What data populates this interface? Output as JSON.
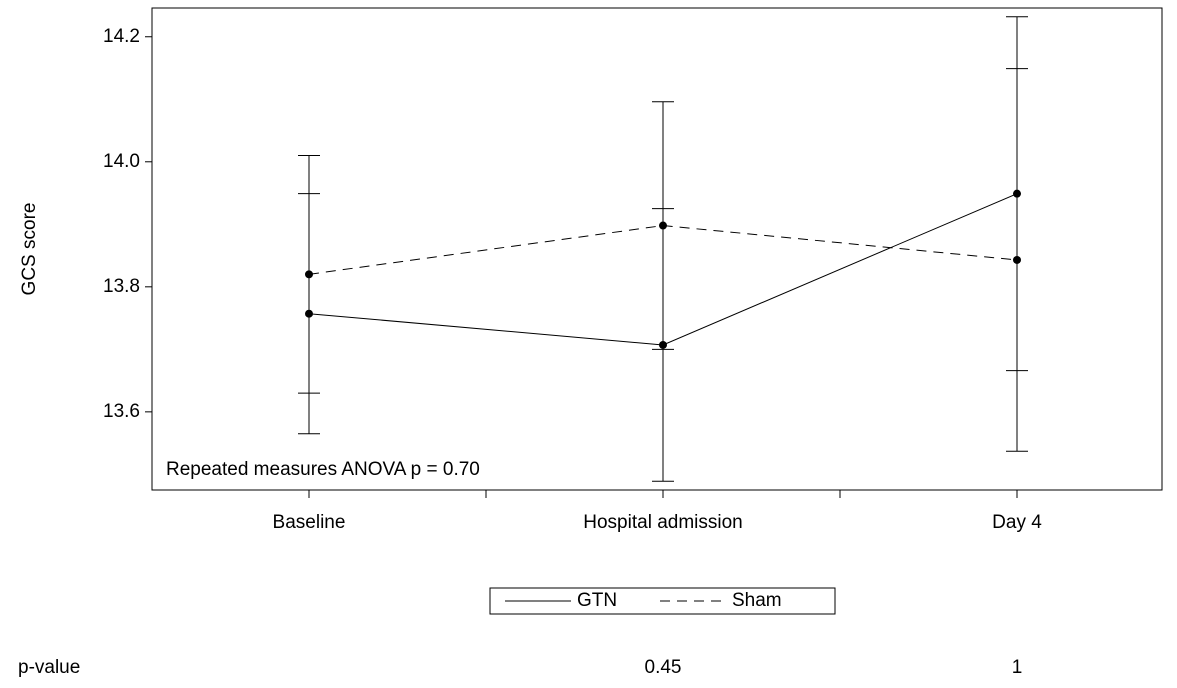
{
  "chart_data": {
    "type": "line",
    "y_label": "GCS score",
    "categories": [
      "Baseline",
      "Hospital admission",
      "Day 4"
    ],
    "series": [
      {
        "name": "GTN",
        "color": "#000000",
        "line_style": "solid",
        "values": [
          13.757,
          13.707,
          13.949
        ],
        "errors": [
          0.192,
          0.218,
          0.283
        ]
      },
      {
        "name": "Sham",
        "color": "#000000",
        "line_style": "dashed",
        "values": [
          13.82,
          13.898,
          13.843
        ],
        "errors": [
          0.19,
          0.198,
          0.306
        ]
      }
    ],
    "ylim": [
      13.475,
      14.246
    ],
    "yticks": [
      13.6,
      13.8,
      {
        "value": 14,
        "label": "14.0"
      },
      14.2
    ],
    "annotation": "Repeated measures ANOVA p = 0.70",
    "p_value_row": {
      "label": "p-value",
      "values": [
        null,
        0.45,
        1
      ]
    },
    "legend": "bottom"
  }
}
